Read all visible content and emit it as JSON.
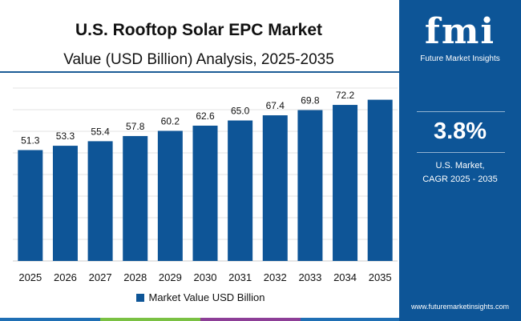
{
  "chart_data": {
    "type": "bar",
    "title": "U.S. Rooftop Solar EPC Market",
    "subtitle": "Value (USD Billion) Analysis, 2025-2035",
    "categories": [
      "2025",
      "2026",
      "2027",
      "2028",
      "2029",
      "2030",
      "2031",
      "2032",
      "2033",
      "2034",
      "2035"
    ],
    "series": [
      {
        "name": "Market Value USD Billion",
        "values": [
          51.3,
          53.3,
          55.4,
          57.8,
          60.2,
          62.6,
          65.0,
          67.4,
          69.8,
          72.2,
          74.6
        ]
      }
    ],
    "value_labels": [
      "51.3",
      "53.3",
      "55.4",
      "57.8",
      "60.2",
      "62.6",
      "65.0",
      "67.4",
      "69.8",
      "72.2",
      ""
    ],
    "xlabel": "",
    "ylabel": "",
    "ylim": [
      0,
      80
    ],
    "grid": true,
    "legend": "bottom-center",
    "bar_color": "#0e5597"
  },
  "side_panel": {
    "logo_text": "fmi",
    "logo_subtitle": "Future Market Insights",
    "cagr_value": "3.8%",
    "cagr_label_line1": "U.S. Market,",
    "cagr_label_line2": "CAGR 2025 - 2035",
    "website": "www.futuremarketinsights.com",
    "background_color": "#0d5597"
  },
  "bottom_bar_colors": [
    "#1f6fb4",
    "#7ac143",
    "#8d3f97",
    "#1f6fb4"
  ]
}
